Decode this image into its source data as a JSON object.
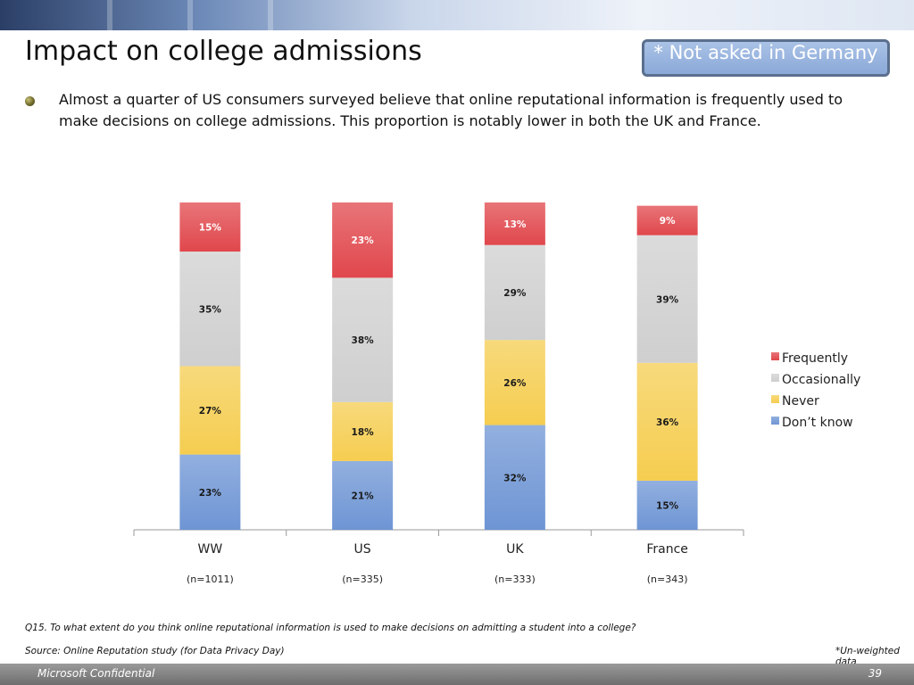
{
  "slide": {
    "title": "Impact on college admissions",
    "note": "* Not asked in Germany",
    "bullet": "Almost a quarter of US consumers surveyed believe that online reputational information is frequently used to make decisions on college admissions. This proportion is notably lower in both the UK and France.",
    "question": "Q15. To what extent do you think online reputational information is used to make decisions on admitting a student into a college?",
    "source": "Source: Online Reputation study (for Data Privacy Day)",
    "unweighted": "*Un-weighted data",
    "footer_left": "Microsoft Confidential",
    "page_number": "39"
  },
  "chart_data": {
    "type": "bar",
    "stacked": true,
    "categories": [
      "WW",
      "US",
      "UK",
      "France"
    ],
    "sample_sizes": [
      "(n=1011)",
      "(n=335)",
      "(n=333)",
      "(n=343)"
    ],
    "series": [
      {
        "name": "Don’t know",
        "values": [
          23,
          21,
          32,
          15
        ],
        "color": "#6e95d4",
        "label_color": "#1a1a1a"
      },
      {
        "name": "Never",
        "values": [
          27,
          18,
          26,
          36
        ],
        "color": "#f5cd50",
        "label_color": "#1a1a1a"
      },
      {
        "name": "Occasionally",
        "values": [
          35,
          38,
          29,
          39
        ],
        "color": "#cfcfcf",
        "label_color": "#1a1a1a"
      },
      {
        "name": "Frequently",
        "values": [
          15,
          23,
          13,
          9
        ],
        "color": "#e0474c",
        "label_color": "#ffffff"
      }
    ],
    "value_suffix": "%",
    "ylim": [
      0,
      100
    ],
    "legend_position": "right",
    "grid": false
  }
}
